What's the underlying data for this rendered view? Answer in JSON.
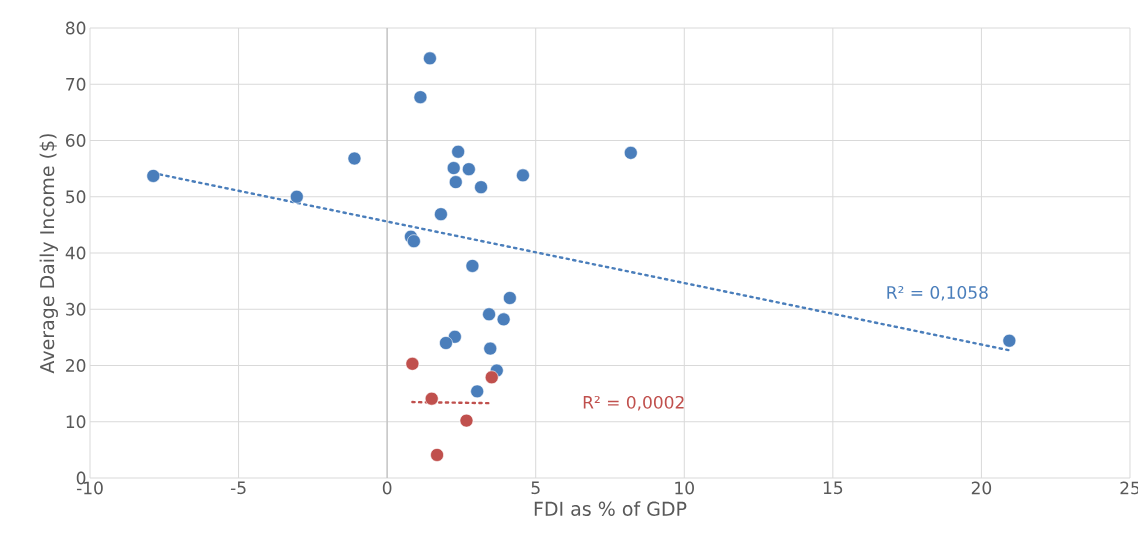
{
  "chart_data": {
    "type": "scatter",
    "xlabel": "FDI as % of GDP",
    "ylabel": "Average Daily Income ($)",
    "xlim": [
      -10,
      25
    ],
    "xticks": [
      -10,
      -5,
      0,
      5,
      10,
      15,
      20,
      25
    ],
    "ylim": [
      0,
      80
    ],
    "yticks": [
      0,
      10,
      20,
      30,
      40,
      50,
      60,
      70,
      80
    ],
    "grid": true,
    "marker": "circle",
    "series": [
      {
        "color": "#4a7ebb",
        "x": [
          -7.87,
          -3.04,
          -1.1,
          1.44,
          1.12,
          2.39,
          2.24,
          2.75,
          2.31,
          3.16,
          4.57,
          1.81,
          0.8,
          0.9,
          2.87,
          4.13,
          3.43,
          3.92,
          2.28,
          1.98,
          3.47,
          3.69,
          3.03,
          8.2,
          20.94
        ],
        "values": [
          53.7,
          50.0,
          56.8,
          74.6,
          67.7,
          58.0,
          55.1,
          54.9,
          52.6,
          51.7,
          53.8,
          46.9,
          42.9,
          42.1,
          37.7,
          32.0,
          29.1,
          28.2,
          25.1,
          24.0,
          23.0,
          19.1,
          15.4,
          57.8,
          24.4
        ]
      },
      {
        "color": "#c0504d",
        "x": [
          0.85,
          1.5,
          3.52,
          2.67,
          1.68
        ],
        "values": [
          20.3,
          14.1,
          17.9,
          10.2,
          4.1
        ]
      },
      {
        "type": "line",
        "color": "#4a7ebb",
        "line_style": "dotted",
        "marker": "none",
        "x": [
          -7.87,
          20.94
        ],
        "values": [
          54.2,
          22.7
        ]
      },
      {
        "type": "line",
        "color": "#c0504d",
        "line_style": "dotted",
        "marker": "none",
        "x": [
          0.85,
          3.52
        ],
        "values": [
          13.5,
          13.3
        ]
      }
    ],
    "annotations": [
      "R² = 0,1058",
      "R² = 0,0002"
    ]
  }
}
